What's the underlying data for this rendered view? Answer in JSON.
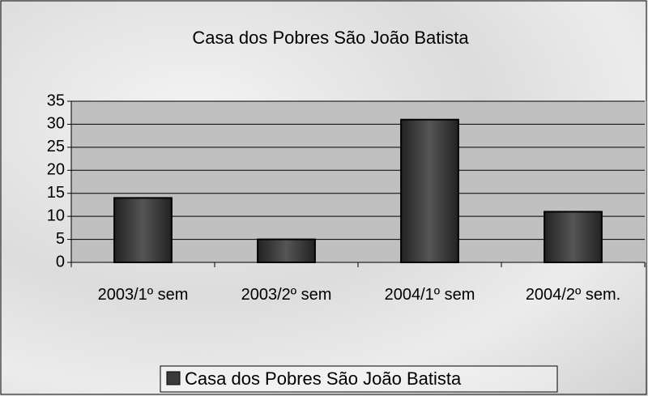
{
  "chart_data": {
    "type": "bar",
    "title": "Casa dos Pobres São João Batista",
    "categories": [
      "2003/1º sem",
      "2003/2º sem",
      "2004/1º sem",
      "2004/2º sem."
    ],
    "series": [
      {
        "name": "Casa dos Pobres São João Batista",
        "color": "#3a3a3a",
        "values": [
          14,
          5,
          31,
          11
        ]
      }
    ],
    "ylim": [
      0,
      35
    ],
    "yticks": [
      0,
      5,
      10,
      15,
      20,
      25,
      30,
      35
    ],
    "grid": true,
    "legend": "bottom"
  }
}
